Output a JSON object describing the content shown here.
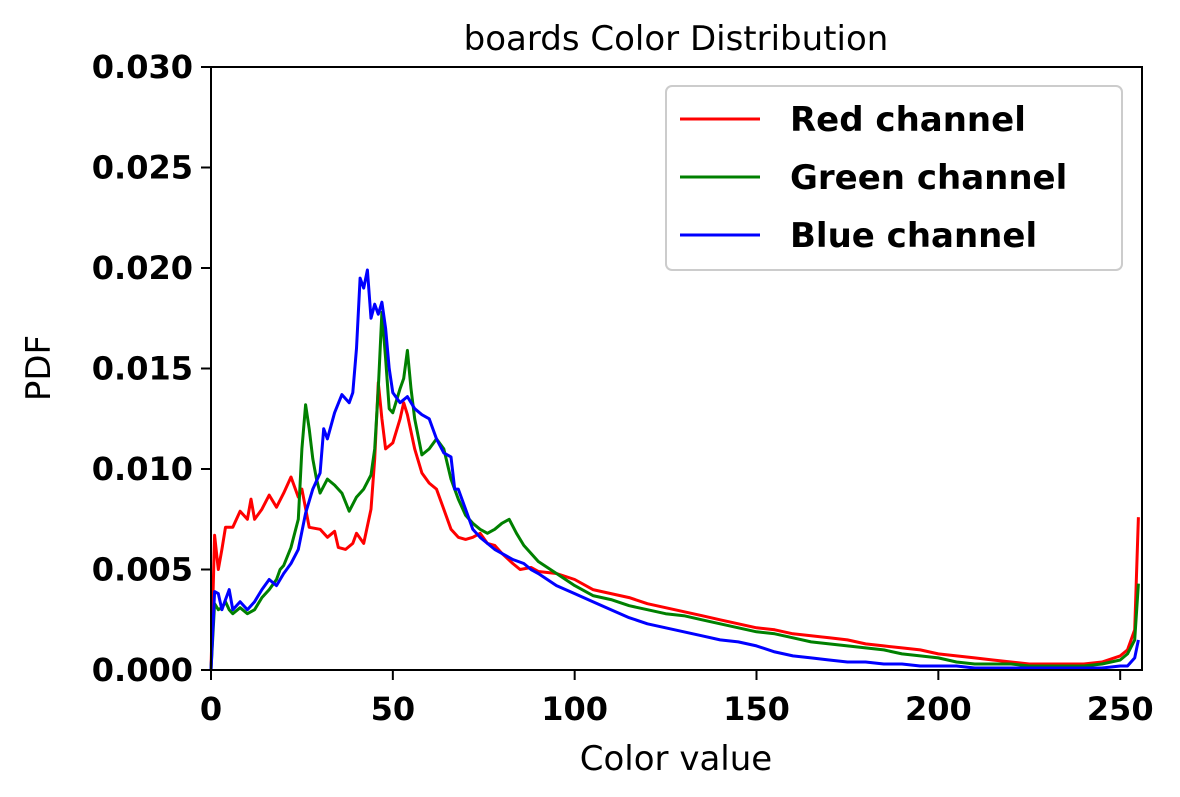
{
  "chart_data": {
    "type": "line",
    "title": "boards Color Distribution",
    "xlabel": "Color value",
    "ylabel": "PDF",
    "xlim": [
      0,
      256
    ],
    "ylim": [
      0,
      0.03
    ],
    "xticks": [
      0,
      50,
      100,
      150,
      200,
      250
    ],
    "xtick_labels": [
      "0",
      "50",
      "100",
      "150",
      "200",
      "250"
    ],
    "yticks": [
      0,
      0.005,
      0.01,
      0.015,
      0.02,
      0.025,
      0.03
    ],
    "ytick_labels": [
      "0.000",
      "0.005",
      "0.010",
      "0.015",
      "0.020",
      "0.025",
      "0.030"
    ],
    "grid": false,
    "legend_position": "top-right",
    "series": [
      {
        "name": "Red channel",
        "color": "#ff0000",
        "points": [
          [
            0,
            0.0
          ],
          [
            1,
            0.0067
          ],
          [
            2,
            0.005
          ],
          [
            3,
            0.006
          ],
          [
            4,
            0.0071
          ],
          [
            6,
            0.0071
          ],
          [
            8,
            0.0079
          ],
          [
            10,
            0.0075
          ],
          [
            11,
            0.0085
          ],
          [
            12,
            0.0075
          ],
          [
            14,
            0.008
          ],
          [
            16,
            0.0087
          ],
          [
            18,
            0.0081
          ],
          [
            20,
            0.0088
          ],
          [
            22,
            0.0096
          ],
          [
            24,
            0.0086
          ],
          [
            25,
            0.009
          ],
          [
            27,
            0.0071
          ],
          [
            30,
            0.007
          ],
          [
            32,
            0.0066
          ],
          [
            34,
            0.0069
          ],
          [
            35,
            0.0061
          ],
          [
            37,
            0.006
          ],
          [
            39,
            0.0063
          ],
          [
            40,
            0.0068
          ],
          [
            42,
            0.0063
          ],
          [
            44,
            0.008
          ],
          [
            45,
            0.0105
          ],
          [
            46,
            0.0143
          ],
          [
            47,
            0.0125
          ],
          [
            48,
            0.011
          ],
          [
            50,
            0.0113
          ],
          [
            52,
            0.0125
          ],
          [
            53,
            0.0133
          ],
          [
            54,
            0.0127
          ],
          [
            56,
            0.011
          ],
          [
            58,
            0.0098
          ],
          [
            60,
            0.0093
          ],
          [
            62,
            0.009
          ],
          [
            64,
            0.008
          ],
          [
            66,
            0.007
          ],
          [
            68,
            0.0066
          ],
          [
            70,
            0.0065
          ],
          [
            72,
            0.0066
          ],
          [
            74,
            0.0068
          ],
          [
            76,
            0.0063
          ],
          [
            78,
            0.0062
          ],
          [
            80,
            0.0058
          ],
          [
            83,
            0.0053
          ],
          [
            85,
            0.005
          ],
          [
            88,
            0.0051
          ],
          [
            90,
            0.0049
          ],
          [
            95,
            0.0048
          ],
          [
            100,
            0.0045
          ],
          [
            105,
            0.004
          ],
          [
            110,
            0.0038
          ],
          [
            115,
            0.0036
          ],
          [
            120,
            0.0033
          ],
          [
            125,
            0.0031
          ],
          [
            130,
            0.0029
          ],
          [
            135,
            0.0027
          ],
          [
            140,
            0.0025
          ],
          [
            145,
            0.0023
          ],
          [
            150,
            0.0021
          ],
          [
            155,
            0.002
          ],
          [
            160,
            0.0018
          ],
          [
            165,
            0.0017
          ],
          [
            170,
            0.0016
          ],
          [
            175,
            0.0015
          ],
          [
            180,
            0.0013
          ],
          [
            185,
            0.0012
          ],
          [
            190,
            0.0011
          ],
          [
            195,
            0.001
          ],
          [
            200,
            0.0008
          ],
          [
            205,
            0.0007
          ],
          [
            210,
            0.0006
          ],
          [
            215,
            0.0005
          ],
          [
            220,
            0.0004
          ],
          [
            225,
            0.0003
          ],
          [
            230,
            0.0003
          ],
          [
            235,
            0.0003
          ],
          [
            240,
            0.0003
          ],
          [
            245,
            0.0004
          ],
          [
            250,
            0.0007
          ],
          [
            252,
            0.001
          ],
          [
            254,
            0.002
          ],
          [
            255,
            0.0076
          ]
        ]
      },
      {
        "name": "Green channel",
        "color": "#008000",
        "points": [
          [
            0,
            0.0
          ],
          [
            1,
            0.0033
          ],
          [
            2,
            0.003
          ],
          [
            3,
            0.0031
          ],
          [
            4,
            0.0034
          ],
          [
            5,
            0.003
          ],
          [
            6,
            0.0028
          ],
          [
            8,
            0.0031
          ],
          [
            10,
            0.0028
          ],
          [
            12,
            0.003
          ],
          [
            14,
            0.0036
          ],
          [
            16,
            0.004
          ],
          [
            18,
            0.0045
          ],
          [
            19,
            0.005
          ],
          [
            20,
            0.0052
          ],
          [
            22,
            0.0061
          ],
          [
            24,
            0.0075
          ],
          [
            25,
            0.011
          ],
          [
            26,
            0.0132
          ],
          [
            27,
            0.012
          ],
          [
            28,
            0.0105
          ],
          [
            29,
            0.0095
          ],
          [
            30,
            0.0088
          ],
          [
            32,
            0.0095
          ],
          [
            34,
            0.0092
          ],
          [
            36,
            0.0088
          ],
          [
            38,
            0.0079
          ],
          [
            40,
            0.0086
          ],
          [
            42,
            0.009
          ],
          [
            44,
            0.0097
          ],
          [
            45,
            0.011
          ],
          [
            46,
            0.014
          ],
          [
            47,
            0.0178
          ],
          [
            48,
            0.0155
          ],
          [
            49,
            0.013
          ],
          [
            50,
            0.0128
          ],
          [
            52,
            0.014
          ],
          [
            53,
            0.0145
          ],
          [
            54,
            0.0159
          ],
          [
            55,
            0.014
          ],
          [
            56,
            0.0125
          ],
          [
            58,
            0.0107
          ],
          [
            60,
            0.011
          ],
          [
            62,
            0.0115
          ],
          [
            64,
            0.011
          ],
          [
            66,
            0.0095
          ],
          [
            68,
            0.0085
          ],
          [
            70,
            0.0077
          ],
          [
            72,
            0.0073
          ],
          [
            74,
            0.007
          ],
          [
            76,
            0.0068
          ],
          [
            78,
            0.007
          ],
          [
            80,
            0.0073
          ],
          [
            82,
            0.0075
          ],
          [
            84,
            0.0068
          ],
          [
            86,
            0.0062
          ],
          [
            88,
            0.0058
          ],
          [
            90,
            0.0054
          ],
          [
            95,
            0.0048
          ],
          [
            100,
            0.0042
          ],
          [
            105,
            0.0037
          ],
          [
            110,
            0.0035
          ],
          [
            115,
            0.0032
          ],
          [
            120,
            0.003
          ],
          [
            125,
            0.0028
          ],
          [
            130,
            0.0027
          ],
          [
            135,
            0.0025
          ],
          [
            140,
            0.0023
          ],
          [
            145,
            0.0021
          ],
          [
            150,
            0.0019
          ],
          [
            155,
            0.0018
          ],
          [
            160,
            0.0016
          ],
          [
            165,
            0.0014
          ],
          [
            170,
            0.0013
          ],
          [
            175,
            0.0012
          ],
          [
            180,
            0.0011
          ],
          [
            185,
            0.001
          ],
          [
            190,
            0.0008
          ],
          [
            195,
            0.0007
          ],
          [
            200,
            0.0006
          ],
          [
            205,
            0.0004
          ],
          [
            210,
            0.0003
          ],
          [
            215,
            0.0003
          ],
          [
            220,
            0.0003
          ],
          [
            225,
            0.0002
          ],
          [
            230,
            0.0002
          ],
          [
            235,
            0.0002
          ],
          [
            240,
            0.0002
          ],
          [
            245,
            0.0003
          ],
          [
            250,
            0.0005
          ],
          [
            252,
            0.0008
          ],
          [
            254,
            0.0015
          ],
          [
            255,
            0.0043
          ]
        ]
      },
      {
        "name": "Blue channel",
        "color": "#0000ff",
        "points": [
          [
            0,
            0.0
          ],
          [
            1,
            0.0039
          ],
          [
            2,
            0.0038
          ],
          [
            3,
            0.003
          ],
          [
            4,
            0.0035
          ],
          [
            5,
            0.004
          ],
          [
            6,
            0.003
          ],
          [
            8,
            0.0034
          ],
          [
            10,
            0.003
          ],
          [
            12,
            0.0034
          ],
          [
            14,
            0.004
          ],
          [
            16,
            0.0045
          ],
          [
            18,
            0.0042
          ],
          [
            20,
            0.0048
          ],
          [
            22,
            0.0053
          ],
          [
            24,
            0.006
          ],
          [
            26,
            0.0078
          ],
          [
            28,
            0.009
          ],
          [
            30,
            0.0098
          ],
          [
            31,
            0.012
          ],
          [
            32,
            0.0115
          ],
          [
            34,
            0.0128
          ],
          [
            36,
            0.0137
          ],
          [
            38,
            0.0133
          ],
          [
            39,
            0.0138
          ],
          [
            40,
            0.016
          ],
          [
            41,
            0.0195
          ],
          [
            42,
            0.019
          ],
          [
            43,
            0.0199
          ],
          [
            44,
            0.0175
          ],
          [
            45,
            0.0182
          ],
          [
            46,
            0.0177
          ],
          [
            47,
            0.0183
          ],
          [
            48,
            0.017
          ],
          [
            49,
            0.015
          ],
          [
            50,
            0.0138
          ],
          [
            52,
            0.0133
          ],
          [
            54,
            0.0136
          ],
          [
            56,
            0.013
          ],
          [
            58,
            0.0127
          ],
          [
            60,
            0.0125
          ],
          [
            62,
            0.0115
          ],
          [
            64,
            0.0108
          ],
          [
            66,
            0.0106
          ],
          [
            67,
            0.009
          ],
          [
            68,
            0.009
          ],
          [
            70,
            0.008
          ],
          [
            72,
            0.007
          ],
          [
            74,
            0.0066
          ],
          [
            76,
            0.0063
          ],
          [
            78,
            0.006
          ],
          [
            80,
            0.0058
          ],
          [
            83,
            0.0055
          ],
          [
            86,
            0.0053
          ],
          [
            88,
            0.005
          ],
          [
            90,
            0.0048
          ],
          [
            95,
            0.0042
          ],
          [
            100,
            0.0038
          ],
          [
            105,
            0.0034
          ],
          [
            110,
            0.003
          ],
          [
            115,
            0.0026
          ],
          [
            120,
            0.0023
          ],
          [
            125,
            0.0021
          ],
          [
            130,
            0.0019
          ],
          [
            135,
            0.0017
          ],
          [
            140,
            0.0015
          ],
          [
            145,
            0.0014
          ],
          [
            150,
            0.0012
          ],
          [
            155,
            0.0009
          ],
          [
            160,
            0.0007
          ],
          [
            165,
            0.0006
          ],
          [
            170,
            0.0005
          ],
          [
            175,
            0.0004
          ],
          [
            180,
            0.0004
          ],
          [
            185,
            0.0003
          ],
          [
            190,
            0.0003
          ],
          [
            195,
            0.0002
          ],
          [
            200,
            0.0002
          ],
          [
            205,
            0.0002
          ],
          [
            210,
            0.0001
          ],
          [
            215,
            0.0001
          ],
          [
            220,
            0.0001
          ],
          [
            225,
            0.0001
          ],
          [
            230,
            0.0001
          ],
          [
            235,
            0.0001
          ],
          [
            240,
            0.0001
          ],
          [
            245,
            0.0001
          ],
          [
            250,
            0.0002
          ],
          [
            252,
            0.0002
          ],
          [
            254,
            0.0006
          ],
          [
            255,
            0.0015
          ]
        ]
      }
    ]
  }
}
